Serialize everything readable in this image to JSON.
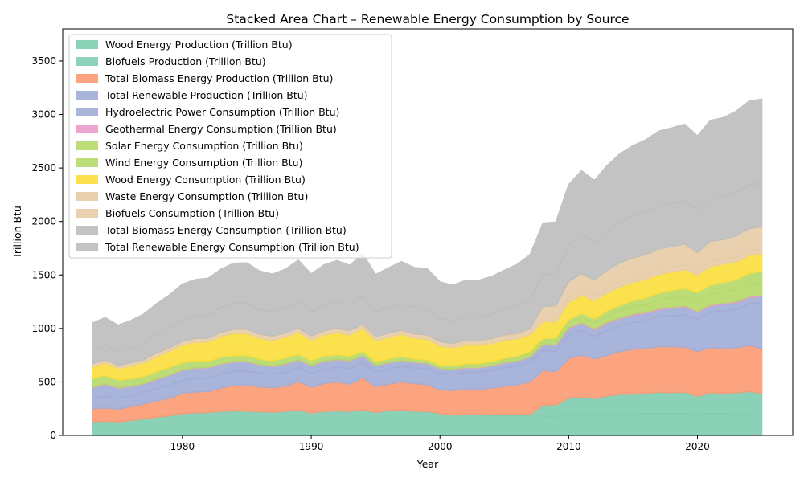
{
  "chart_data": {
    "type": "area",
    "stacked": true,
    "title": "Stacked Area Chart – Renewable Energy Consumption by Source",
    "xlabel": "Year",
    "ylabel": "Trillion Btu",
    "xlim": [
      1970.7,
      2027.4
    ],
    "ylim": [
      0,
      3800
    ],
    "xticks": [
      1980,
      1990,
      2000,
      2010,
      2020
    ],
    "yticks": [
      0,
      500,
      1000,
      1500,
      2000,
      2500,
      3000,
      3500
    ],
    "grid": false,
    "legend_position": "top-left",
    "x": [
      1973,
      1974,
      1975,
      1976,
      1977,
      1978,
      1979,
      1980,
      1981,
      1982,
      1983,
      1984,
      1985,
      1986,
      1987,
      1988,
      1989,
      1990,
      1991,
      1992,
      1993,
      1994,
      1995,
      1996,
      1997,
      1998,
      1999,
      2000,
      2001,
      2002,
      2003,
      2004,
      2005,
      2006,
      2007,
      2008,
      2009,
      2010,
      2011,
      2012,
      2013,
      2014,
      2015,
      2016,
      2017,
      2018,
      2019,
      2020,
      2021,
      2022,
      2023,
      2024,
      2025
    ],
    "series": [
      {
        "name": "Wood Energy Production (Trillion Btu)",
        "color": "#7fcdb0",
        "values": [
          130,
          132,
          128,
          140,
          155,
          172,
          185,
          205,
          212,
          215,
          225,
          230,
          228,
          222,
          218,
          225,
          238,
          210,
          225,
          230,
          225,
          240,
          215,
          235,
          240,
          225,
          225,
          205,
          190,
          195,
          195,
          185,
          190,
          185,
          185,
          180,
          165,
          195,
          200,
          195,
          200,
          200,
          195,
          205,
          205,
          205,
          205,
          195,
          205,
          205,
          195,
          200,
          185
        ]
      },
      {
        "name": "Biofuels Production (Trillion Btu)",
        "color": "#7fcdb0",
        "values": [
          0,
          0,
          0,
          0,
          0,
          0,
          0,
          0,
          0,
          0,
          0,
          0,
          0,
          0,
          0,
          0,
          0,
          0,
          0,
          0,
          0,
          0,
          0,
          0,
          0,
          0,
          0,
          0,
          0,
          5,
          5,
          8,
          10,
          10,
          15,
          105,
          120,
          155,
          160,
          150,
          170,
          185,
          190,
          190,
          200,
          195,
          200,
          170,
          195,
          190,
          205,
          210,
          210
        ]
      },
      {
        "name": "Total Biomass Energy Production (Trillion Btu)",
        "color": "#fc9a73",
        "values": [
          120,
          125,
          118,
          130,
          140,
          150,
          165,
          190,
          195,
          195,
          220,
          240,
          245,
          230,
          230,
          235,
          265,
          240,
          260,
          270,
          255,
          300,
          240,
          245,
          260,
          260,
          250,
          220,
          230,
          230,
          230,
          250,
          260,
          280,
          300,
          325,
          310,
          370,
          390,
          370,
          380,
          400,
          420,
          420,
          425,
          430,
          420,
          420,
          420,
          420,
          420,
          430,
          420
        ]
      },
      {
        "name": "Total Renewable Production (Trillion Btu)",
        "color": "#a0acd6",
        "values": [
          95,
          110,
          100,
          100,
          110,
          115,
          120,
          120,
          125,
          125,
          130,
          130,
          130,
          130,
          125,
          130,
          135,
          125,
          135,
          140,
          145,
          140,
          135,
          140,
          145,
          145,
          150,
          155,
          155,
          160,
          160,
          165,
          170,
          175,
          180,
          185,
          190,
          220,
          230,
          210,
          230,
          240,
          250,
          260,
          280,
          290,
          300,
          300,
          330,
          350,
          360,
          390,
          430
        ]
      },
      {
        "name": "Hydroelectric Power Consumption (Trillion Btu)",
        "color": "#a0acd6",
        "values": [
          100,
          110,
          95,
          85,
          75,
          85,
          90,
          95,
          95,
          95,
          90,
          85,
          85,
          75,
          70,
          75,
          65,
          75,
          70,
          65,
          70,
          60,
          60,
          55,
          50,
          50,
          45,
          40,
          40,
          40,
          40,
          40,
          45,
          45,
          50,
          50,
          55,
          60,
          65,
          60,
          70,
          65,
          70,
          65,
          65,
          70,
          75,
          65,
          60,
          60,
          60,
          60,
          55
        ]
      },
      {
        "name": "Geothermal Energy Consumption (Trillion Btu)",
        "color": "#e99bc9",
        "values": [
          5,
          5,
          5,
          5,
          5,
          5,
          5,
          5,
          5,
          5,
          5,
          5,
          5,
          5,
          5,
          5,
          5,
          5,
          5,
          5,
          5,
          5,
          5,
          5,
          5,
          5,
          5,
          5,
          5,
          5,
          5,
          5,
          5,
          5,
          5,
          5,
          5,
          10,
          10,
          10,
          10,
          10,
          10,
          10,
          10,
          10,
          10,
          10,
          10,
          10,
          10,
          10,
          10
        ]
      },
      {
        "name": "Solar Energy Consumption (Trillion Btu)",
        "color": "#b5d96a",
        "values": [
          80,
          80,
          70,
          70,
          65,
          70,
          70,
          65,
          65,
          60,
          60,
          55,
          55,
          50,
          50,
          55,
          50,
          45,
          45,
          45,
          40,
          40,
          35,
          35,
          35,
          30,
          30,
          30,
          30,
          30,
          30,
          30,
          30,
          30,
          30,
          35,
          40,
          45,
          50,
          55,
          60,
          65,
          70,
          75,
          80,
          85,
          90,
          95,
          100,
          105,
          110,
          115,
          120
        ]
      },
      {
        "name": "Wind Energy Consumption (Trillion Btu)",
        "color": "#b5d96a",
        "values": [
          0,
          0,
          0,
          0,
          0,
          0,
          0,
          0,
          0,
          0,
          0,
          0,
          0,
          0,
          0,
          0,
          0,
          0,
          0,
          0,
          0,
          0,
          0,
          0,
          0,
          0,
          0,
          0,
          0,
          5,
          5,
          5,
          10,
          10,
          15,
          20,
          25,
          30,
          35,
          40,
          45,
          50,
          55,
          60,
          65,
          70,
          75,
          80,
          85,
          90,
          95,
          100,
          105
        ]
      },
      {
        "name": "Wood Energy Consumption (Trillion Btu)",
        "color": "#fcde3c",
        "values": [
          110,
          115,
          110,
          120,
          130,
          140,
          150,
          165,
          175,
          180,
          195,
          210,
          205,
          195,
          190,
          195,
          205,
          190,
          200,
          205,
          200,
          215,
          195,
          200,
          210,
          195,
          195,
          180,
          170,
          175,
          175,
          170,
          170,
          165,
          165,
          160,
          150,
          160,
          170,
          170,
          170,
          175,
          170,
          175,
          175,
          175,
          175,
          165,
          175,
          170,
          165,
          170,
          165
        ]
      },
      {
        "name": "Waste Energy Consumption (Trillion Btu)",
        "color": "#e7cca6",
        "values": [
          30,
          30,
          30,
          30,
          30,
          35,
          35,
          35,
          35,
          35,
          40,
          40,
          40,
          40,
          40,
          40,
          40,
          40,
          40,
          40,
          40,
          40,
          40,
          40,
          40,
          40,
          40,
          40,
          40,
          40,
          40,
          40,
          40,
          40,
          40,
          40,
          40,
          45,
          45,
          45,
          45,
          45,
          45,
          45,
          45,
          45,
          45,
          45,
          45,
          45,
          45,
          45,
          45
        ]
      },
      {
        "name": "Biofuels Consumption (Trillion Btu)",
        "color": "#e7cca6",
        "values": [
          0,
          0,
          0,
          0,
          0,
          0,
          0,
          0,
          0,
          0,
          0,
          0,
          0,
          0,
          0,
          0,
          0,
          0,
          0,
          0,
          0,
          0,
          0,
          0,
          0,
          0,
          0,
          0,
          0,
          5,
          5,
          8,
          10,
          10,
          15,
          100,
          110,
          150,
          155,
          150,
          165,
          180,
          185,
          185,
          195,
          190,
          195,
          165,
          190,
          185,
          200,
          205,
          205
        ]
      },
      {
        "name": "Total Biomass Energy Consumption (Trillion Btu)",
        "color": "#bdbdbd",
        "values": [
          130,
          135,
          130,
          140,
          155,
          170,
          185,
          205,
          210,
          215,
          230,
          245,
          245,
          230,
          225,
          230,
          250,
          225,
          240,
          250,
          240,
          260,
          230,
          240,
          250,
          245,
          245,
          215,
          210,
          215,
          215,
          225,
          235,
          250,
          270,
          300,
          295,
          345,
          365,
          350,
          370,
          380,
          390,
          395,
          400,
          400,
          400,
          390,
          400,
          400,
          405,
          410,
          405
        ]
      },
      {
        "name": "Total Renewable Energy Consumption (Trillion Btu)",
        "color": "#bdbdbd",
        "values": [
          250,
          260,
          245,
          255,
          270,
          290,
          310,
          330,
          340,
          345,
          360,
          370,
          375,
          360,
          355,
          365,
          385,
          355,
          375,
          385,
          370,
          400,
          350,
          370,
          390,
          375,
          375,
          345,
          335,
          345,
          345,
          355,
          370,
          395,
          420,
          480,
          490,
          560,
          600,
          580,
          610,
          640,
          660,
          680,
          700,
          710,
          720,
          700,
          730,
          740,
          760,
          780,
          790
        ]
      }
    ]
  }
}
